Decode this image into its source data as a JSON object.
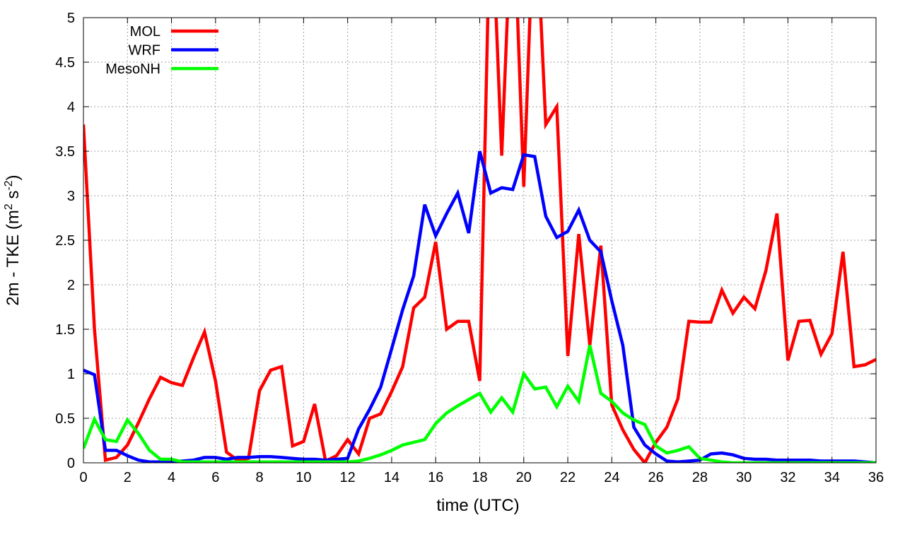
{
  "chart_data": {
    "type": "line",
    "title": "",
    "xlabel": "time (UTC)",
    "ylabel_main": "2m - TKE (m",
    "ylabel_sup1": "2",
    "ylabel_mid": " s",
    "ylabel_sup2": "-2",
    "ylabel_end": ")",
    "xlim": [
      0,
      36
    ],
    "ylim": [
      0,
      5
    ],
    "grid": true,
    "legend_position": "top-left",
    "x_ticks": [
      "0",
      "2",
      "4",
      "6",
      "8",
      "10",
      "12",
      "14",
      "16",
      "18",
      "20",
      "22",
      "24",
      "26",
      "28",
      "30",
      "32",
      "34",
      "36"
    ],
    "y_ticks": [
      "0",
      "0.5",
      "1",
      "1.5",
      "2",
      "2.5",
      "3",
      "3.5",
      "4",
      "4.5",
      "5"
    ],
    "x": [
      0,
      0.5,
      1,
      1.5,
      2,
      2.5,
      3,
      3.5,
      4,
      4.5,
      5,
      5.5,
      6,
      6.5,
      7,
      7.5,
      8,
      8.5,
      9,
      9.5,
      10,
      10.5,
      11,
      11.5,
      12,
      12.5,
      13,
      13.5,
      14,
      14.5,
      15,
      15.5,
      16,
      16.5,
      17,
      17.5,
      18,
      18.5,
      19,
      19.5,
      20,
      20.5,
      21,
      21.5,
      22,
      22.5,
      23,
      23.5,
      24,
      24.5,
      25,
      25.5,
      26,
      26.5,
      27,
      27.5,
      28,
      28.5,
      29,
      29.5,
      30,
      30.5,
      31,
      31.5,
      32,
      32.5,
      33,
      33.5,
      34,
      34.5,
      35,
      35.5,
      36
    ],
    "series": [
      {
        "name": "MOL",
        "color": "#ff0000",
        "values": [
          3.8,
          1.5,
          0.03,
          0.06,
          0.2,
          0.45,
          0.72,
          0.96,
          0.9,
          0.87,
          1.18,
          1.47,
          0.92,
          0.12,
          0.03,
          0.05,
          0.81,
          1.04,
          1.08,
          0.19,
          0.24,
          0.66,
          0.02,
          0.08,
          0.26,
          0.1,
          0.5,
          0.55,
          0.8,
          1.08,
          1.74,
          1.86,
          2.48,
          1.5,
          1.59,
          1.59,
          0.92,
          6.5,
          3.45,
          6.5,
          3.1,
          6.5,
          3.8,
          4.0,
          1.2,
          2.57,
          1.32,
          2.44,
          0.65,
          0.37,
          0.15,
          0.0,
          0.23,
          0.4,
          0.72,
          1.59,
          1.58,
          1.58,
          1.94,
          1.68,
          1.86,
          1.73,
          2.16,
          2.8,
          1.15,
          1.59,
          1.6,
          1.22,
          1.45,
          2.37,
          1.08,
          1.1,
          1.16
        ]
      },
      {
        "name": "WRF",
        "color": "#0000ff",
        "values": [
          1.04,
          0.99,
          0.14,
          0.14,
          0.08,
          0.03,
          0.01,
          0.01,
          0.01,
          0.02,
          0.03,
          0.06,
          0.06,
          0.04,
          0.06,
          0.06,
          0.07,
          0.07,
          0.06,
          0.05,
          0.04,
          0.04,
          0.03,
          0.04,
          0.05,
          0.38,
          0.6,
          0.85,
          1.28,
          1.72,
          2.1,
          2.9,
          2.55,
          2.8,
          3.03,
          2.58,
          3.5,
          3.03,
          3.09,
          3.07,
          3.46,
          3.44,
          2.77,
          2.53,
          2.6,
          2.84,
          2.5,
          2.37,
          1.82,
          1.32,
          0.4,
          0.2,
          0.1,
          0.02,
          0.01,
          0.02,
          0.03,
          0.1,
          0.11,
          0.09,
          0.05,
          0.04,
          0.04,
          0.03,
          0.03,
          0.03,
          0.03,
          0.02,
          0.02,
          0.02,
          0.02,
          0.01,
          0.0
        ]
      },
      {
        "name": "MesoNH",
        "color": "#00ff00",
        "values": [
          0.16,
          0.49,
          0.26,
          0.24,
          0.48,
          0.33,
          0.14,
          0.04,
          0.04,
          0.01,
          0.01,
          0.01,
          0.01,
          0.01,
          0.01,
          0.01,
          0.01,
          0.01,
          0.01,
          0.01,
          0.01,
          0.01,
          0.01,
          0.01,
          0.01,
          0.02,
          0.05,
          0.09,
          0.14,
          0.2,
          0.23,
          0.26,
          0.44,
          0.56,
          0.64,
          0.71,
          0.78,
          0.57,
          0.73,
          0.57,
          1.0,
          0.83,
          0.85,
          0.63,
          0.86,
          0.69,
          1.32,
          0.78,
          0.69,
          0.56,
          0.48,
          0.43,
          0.19,
          0.11,
          0.14,
          0.18,
          0.05,
          0.03,
          0.01,
          0.0,
          0.0,
          0.0,
          0.0,
          0.0,
          0.0,
          0.0,
          0.0,
          0.0,
          0.0,
          0.0,
          0.0,
          0.0,
          0.0
        ]
      }
    ]
  }
}
